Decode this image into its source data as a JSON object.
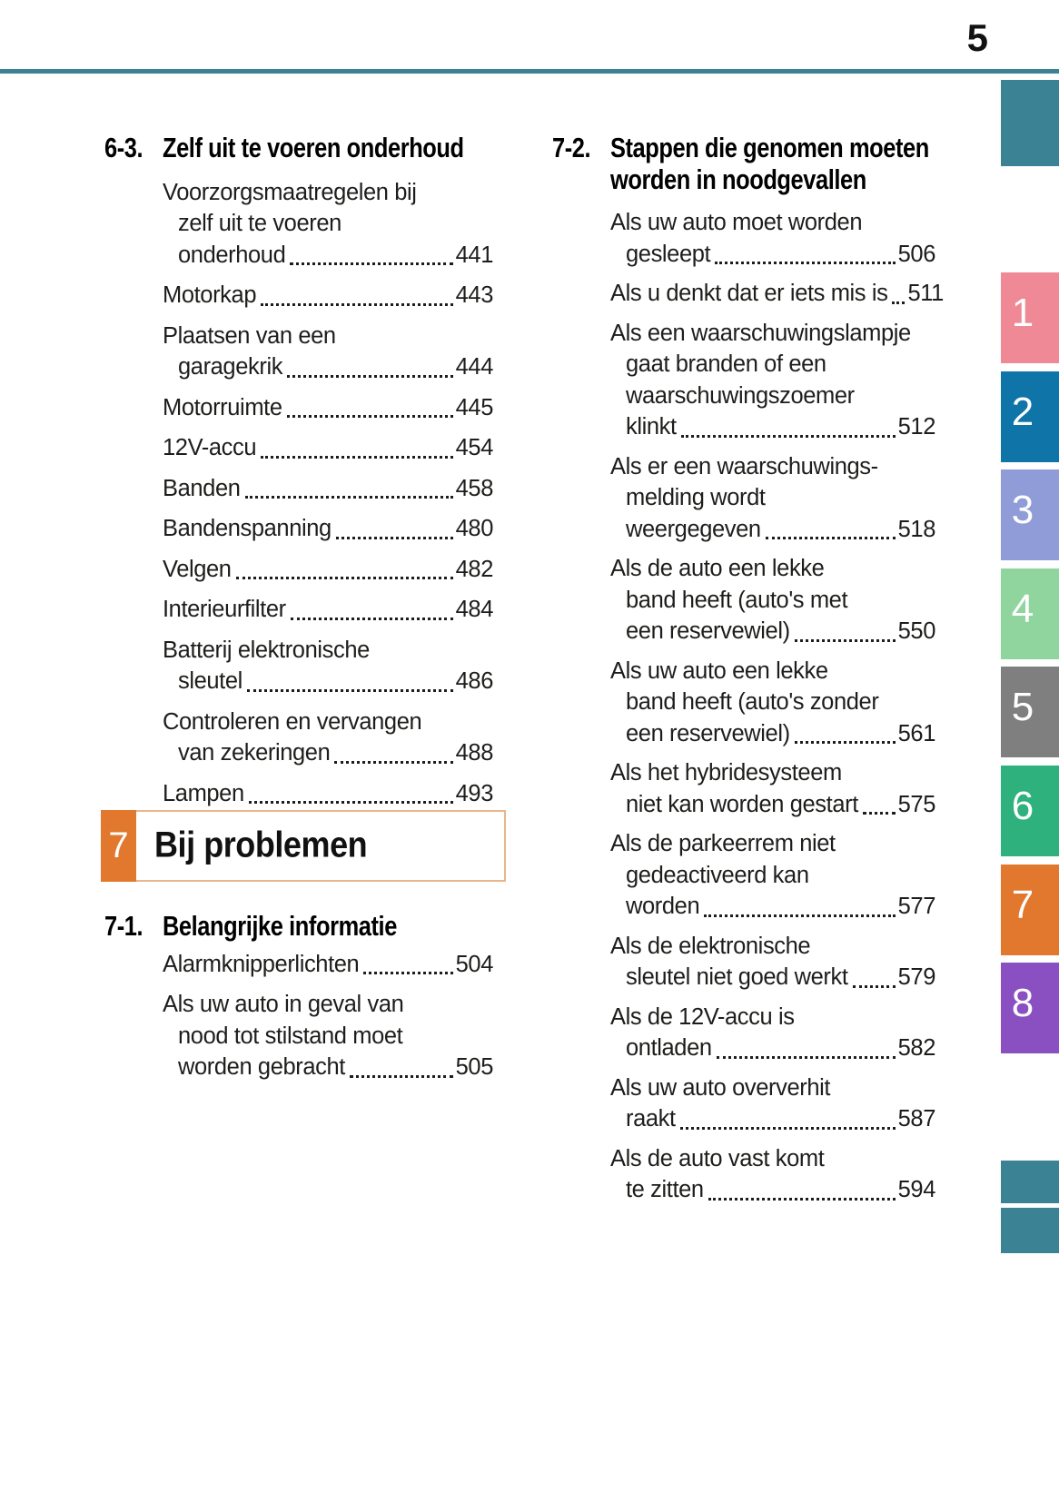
{
  "page": {
    "number": "5",
    "accent_teal": "#3a8294",
    "accent_orange": "#e1782e",
    "box_border_color": "#e9b68c",
    "text_color": "#1d1d1b"
  },
  "left_column": {
    "section_1": {
      "number": "6-3.",
      "title": "Zelf uit te voeren onderhoud",
      "entries": [
        {
          "lines": [
            "Voorzorgsmaatregelen bij",
            "zelf uit te voeren",
            "onderhoud"
          ],
          "page": "441"
        },
        {
          "lines": [
            "Motorkap"
          ],
          "page": "443"
        },
        {
          "lines": [
            "Plaatsen van een",
            "garagekrik"
          ],
          "page": "444"
        },
        {
          "lines": [
            "Motorruimte"
          ],
          "page": "445"
        },
        {
          "lines": [
            "12V-accu"
          ],
          "page": "454"
        },
        {
          "lines": [
            "Banden"
          ],
          "page": "458"
        },
        {
          "lines": [
            "Bandenspanning"
          ],
          "page": "480"
        },
        {
          "lines": [
            "Velgen"
          ],
          "page": "482"
        },
        {
          "lines": [
            "Interieurfilter"
          ],
          "page": "484"
        },
        {
          "lines": [
            "Batterij elektronische",
            "sleutel"
          ],
          "page": "486"
        },
        {
          "lines": [
            "Controleren en vervangen",
            "van zekeringen"
          ],
          "page": "488"
        },
        {
          "lines": [
            "Lampen"
          ],
          "page": "493"
        }
      ]
    },
    "problem_box": {
      "chapter_number": "7",
      "label": "Bij problemen"
    },
    "section_2": {
      "number": "7-1.",
      "title": "Belangrijke informatie",
      "entries": [
        {
          "lines": [
            "Alarmknipperlichten"
          ],
          "page": "504"
        },
        {
          "lines": [
            "Als uw auto in geval van",
            "nood tot stilstand moet",
            "worden gebracht"
          ],
          "page": "505"
        }
      ]
    }
  },
  "right_column": {
    "section": {
      "number": "7-2.",
      "title_lines": [
        "Stappen die genomen moeten",
        "worden in noodgevallen"
      ],
      "entries": [
        {
          "lines": [
            "Als uw auto moet worden",
            "gesleept"
          ],
          "page": "506"
        },
        {
          "lines": [
            "Als u denkt dat er iets mis is"
          ],
          "page": "511"
        },
        {
          "lines": [
            "Als een waarschuwingslampje",
            "gaat branden of een",
            "waarschuwingszoemer",
            "klinkt"
          ],
          "page": "512"
        },
        {
          "lines": [
            "Als er een waarschuwings-",
            "melding wordt",
            "weergegeven"
          ],
          "page": "518"
        },
        {
          "lines": [
            "Als de auto een lekke",
            "band heeft (auto's met",
            "een reservewiel)"
          ],
          "page": "550"
        },
        {
          "lines": [
            "Als uw auto een lekke",
            "band heeft (auto's zonder",
            "een reservewiel)"
          ],
          "page": "561"
        },
        {
          "lines": [
            "Als het hybridesysteem",
            "niet kan worden gestart"
          ],
          "page": "575"
        },
        {
          "lines": [
            "Als de parkeerrem niet",
            "gedeactiveerd kan",
            "worden"
          ],
          "page": "577"
        },
        {
          "lines": [
            "Als de elektronische",
            "sleutel niet goed werkt"
          ],
          "page": "579"
        },
        {
          "lines": [
            "Als de 12V-accu is",
            "ontladen"
          ],
          "page": "582"
        },
        {
          "lines": [
            "Als uw auto oververhit",
            "raakt"
          ],
          "page": "587"
        },
        {
          "lines": [
            "Als de auto vast komt",
            "te zitten"
          ],
          "page": "594"
        }
      ]
    }
  },
  "side_tabs": {
    "block_color": "#3a8294",
    "tabs": [
      {
        "label": "1",
        "color": "#ef8995"
      },
      {
        "label": "2",
        "color": "#0f74a8"
      },
      {
        "label": "3",
        "color": "#8f9cd8"
      },
      {
        "label": "4",
        "color": "#90d59e"
      },
      {
        "label": "5",
        "color": "#7f7f7f"
      },
      {
        "label": "6",
        "color": "#2fb17e"
      },
      {
        "label": "7",
        "color": "#e1782e"
      },
      {
        "label": "8",
        "color": "#8a4fc0"
      }
    ]
  }
}
